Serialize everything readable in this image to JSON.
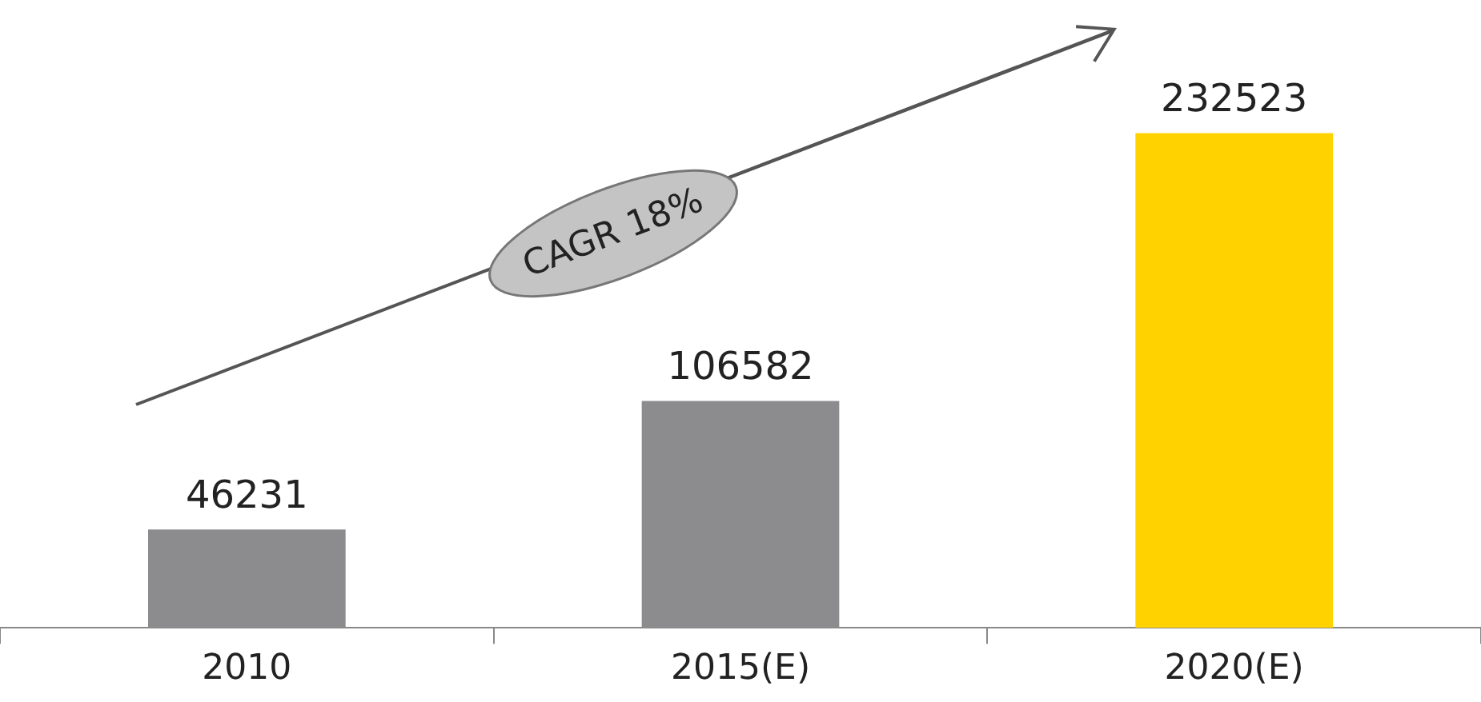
{
  "chart_data": {
    "type": "bar",
    "categories": [
      "2010",
      "2015(E)",
      "2020(E)"
    ],
    "values": [
      46231,
      106582,
      232523
    ],
    "colors": [
      "#8c8c8e",
      "#8c8c8e",
      "#ffd200"
    ],
    "data_labels": true,
    "tick_labels": "x",
    "grid": false,
    "legend": false,
    "annotations": [
      "CAGR 18%"
    ]
  }
}
